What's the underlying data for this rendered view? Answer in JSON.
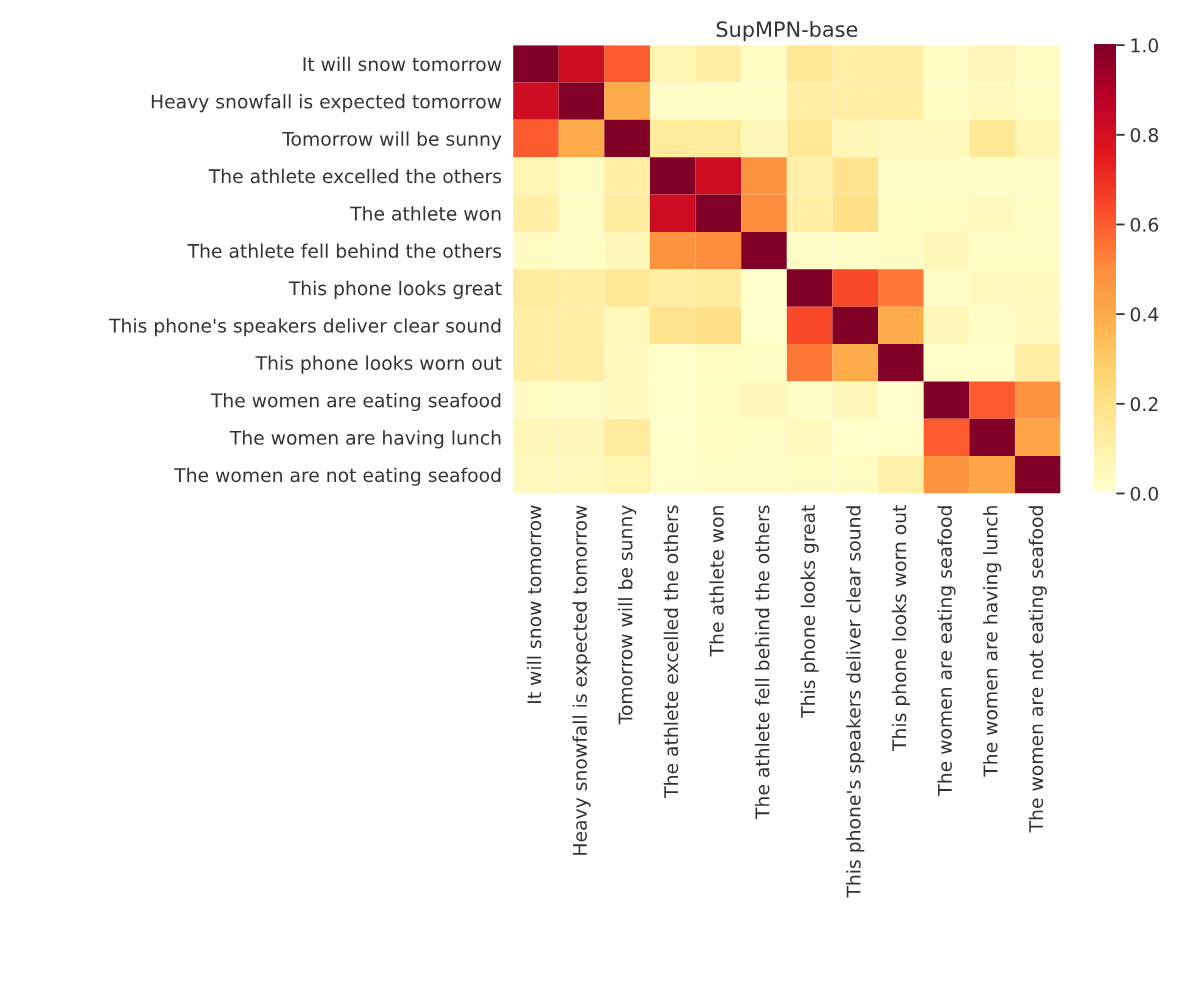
{
  "chart_data": {
    "type": "heatmap",
    "title": "SupMPN-base",
    "categories": [
      "It will snow tomorrow",
      "Heavy snowfall is expected tomorrow",
      "Tomorrow will be sunny",
      "The athlete excelled the others",
      "The athlete won",
      "The athlete fell behind the others",
      "This phone looks great",
      "This phone's speakers deliver clear sound",
      "This phone looks worn out",
      "The women are eating seafood",
      "The women are having lunch",
      "The women are not eating seafood"
    ],
    "y_categories": [
      "It will snow tomorrow",
      "Heavy snowfall is expected tomorrow",
      "Tomorrow will be sunny",
      "The athlete excelled the others",
      "The athlete won",
      "The athlete fell behind the others",
      "This phone looks great",
      "This phone's speakers deliver clear sound",
      "This phone looks worn out",
      "The women are eating seafood",
      "The women are having lunch",
      "The women are not eating seafood"
    ],
    "cells": [
      [
        1.0,
        0.82,
        0.6,
        0.08,
        0.12,
        0.03,
        0.16,
        0.12,
        0.12,
        0.03,
        0.06,
        0.03
      ],
      [
        0.82,
        1.0,
        0.4,
        0.02,
        0.02,
        0.02,
        0.12,
        0.12,
        0.12,
        0.03,
        0.04,
        0.03
      ],
      [
        0.6,
        0.4,
        1.0,
        0.14,
        0.14,
        0.06,
        0.16,
        0.06,
        0.04,
        0.04,
        0.16,
        0.07
      ],
      [
        0.08,
        0.03,
        0.12,
        1.0,
        0.82,
        0.48,
        0.1,
        0.18,
        0.02,
        0.02,
        0.02,
        0.02
      ],
      [
        0.12,
        0.02,
        0.13,
        0.82,
        1.0,
        0.5,
        0.12,
        0.2,
        0.03,
        0.03,
        0.04,
        0.02
      ],
      [
        0.03,
        0.02,
        0.06,
        0.48,
        0.5,
        1.0,
        0.02,
        0.02,
        0.03,
        0.06,
        0.02,
        0.02
      ],
      [
        0.14,
        0.12,
        0.16,
        0.12,
        0.13,
        0.0,
        1.0,
        0.64,
        0.54,
        0.02,
        0.04,
        0.04
      ],
      [
        0.12,
        0.12,
        0.05,
        0.18,
        0.2,
        0.0,
        0.64,
        1.0,
        0.4,
        0.06,
        0.02,
        0.04
      ],
      [
        0.12,
        0.12,
        0.04,
        0.01,
        0.03,
        0.02,
        0.54,
        0.4,
        1.0,
        0.01,
        0.01,
        0.12
      ],
      [
        0.03,
        0.02,
        0.04,
        0.01,
        0.03,
        0.06,
        0.02,
        0.06,
        0.0,
        1.0,
        0.6,
        0.48
      ],
      [
        0.06,
        0.06,
        0.14,
        0.01,
        0.03,
        0.02,
        0.04,
        0.01,
        0.01,
        0.6,
        1.0,
        0.42
      ],
      [
        0.04,
        0.04,
        0.08,
        0.01,
        0.02,
        0.02,
        0.03,
        0.03,
        0.1,
        0.48,
        0.42,
        1.0
      ]
    ],
    "clim": [
      0.0,
      1.0
    ],
    "cticks": [
      {
        "value": 0.0,
        "label": "0.0"
      },
      {
        "value": 0.2,
        "label": "0.2"
      },
      {
        "value": 0.4,
        "label": "0.4"
      },
      {
        "value": 0.6,
        "label": "0.6"
      },
      {
        "value": 0.8,
        "label": "0.8"
      },
      {
        "value": 1.0,
        "label": "1.0"
      }
    ]
  }
}
